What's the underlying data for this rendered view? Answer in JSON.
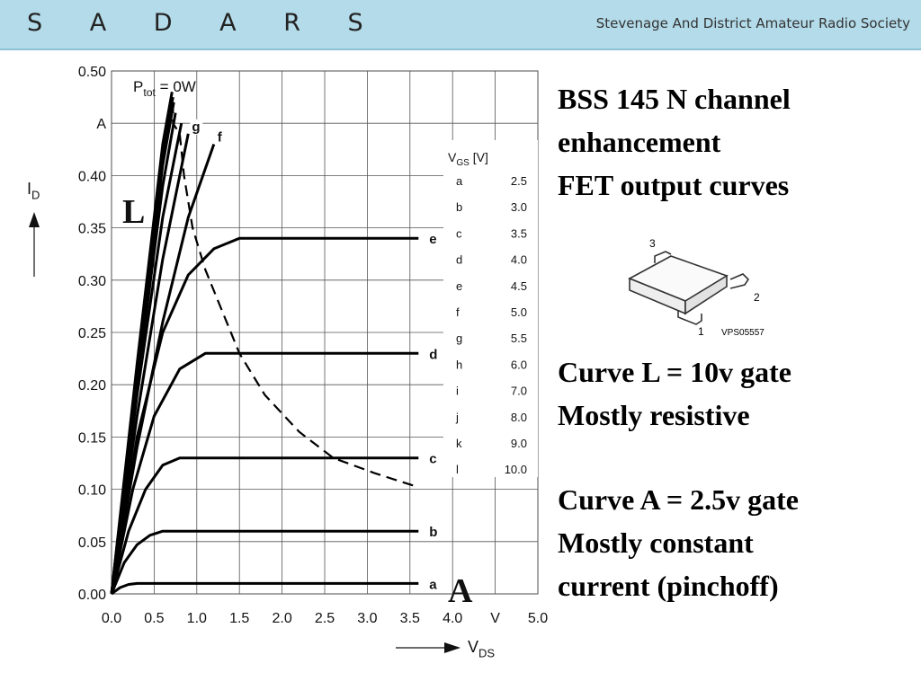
{
  "header": {
    "logo": "S A D A R S",
    "society": "Stevenage And District Amateur Radio Society",
    "bg_color": "#b3dbe9"
  },
  "description": {
    "title_lines": [
      "BSS 145 N channel",
      "enhancement",
      "FET output curves"
    ],
    "curve_l_lines": [
      "Curve L = 10v gate",
      "Mostly resistive"
    ],
    "curve_a_lines": [
      "Curve A = 2.5v gate",
      "Mostly constant",
      "current (pinchoff)"
    ]
  },
  "package": {
    "pins": [
      "1",
      "2",
      "3"
    ],
    "code": "VPS05557"
  },
  "chart_data": {
    "type": "line",
    "xlabel": "V",
    "xlabel_sub": "DS",
    "ylabel": "I",
    "ylabel_sub": "D",
    "x_unit": "V",
    "y_unit": "A",
    "xlim": [
      0,
      5.0
    ],
    "ylim": [
      0,
      0.5
    ],
    "x_ticks": [
      "0.0",
      "0.5",
      "1.0",
      "1.5",
      "2.0",
      "2.5",
      "3.0",
      "3.5",
      "4.0",
      "V",
      "5.0"
    ],
    "y_ticks": [
      "0.00",
      "0.05",
      "0.10",
      "0.15",
      "0.20",
      "0.25",
      "0.30",
      "0.35",
      "0.40",
      "A",
      "0.50"
    ],
    "grid": true,
    "ptot_label": "P",
    "ptot_sub": "tot",
    "ptot_value": "= 0W",
    "overlay_labels": {
      "L": "L",
      "A": "A"
    },
    "vgs_table": {
      "header": "V",
      "header_sub": "GS",
      "header_unit": "[V]",
      "rows": [
        [
          "a",
          "2.5"
        ],
        [
          "b",
          "3.0"
        ],
        [
          "c",
          "3.5"
        ],
        [
          "d",
          "4.0"
        ],
        [
          "e",
          "4.5"
        ],
        [
          "f",
          "5.0"
        ],
        [
          "g",
          "5.5"
        ],
        [
          "h",
          "6.0"
        ],
        [
          "i",
          "7.0"
        ],
        [
          "j",
          "8.0"
        ],
        [
          "k",
          "9.0"
        ],
        [
          "l",
          "10.0"
        ]
      ]
    },
    "series": [
      {
        "name": "a",
        "points": [
          [
            0,
            0
          ],
          [
            0.1,
            0.006
          ],
          [
            0.2,
            0.009
          ],
          [
            0.3,
            0.01
          ],
          [
            3.6,
            0.01
          ]
        ]
      },
      {
        "name": "b",
        "points": [
          [
            0,
            0
          ],
          [
            0.15,
            0.03
          ],
          [
            0.3,
            0.047
          ],
          [
            0.45,
            0.056
          ],
          [
            0.6,
            0.06
          ],
          [
            3.6,
            0.06
          ]
        ]
      },
      {
        "name": "c",
        "points": [
          [
            0,
            0
          ],
          [
            0.2,
            0.06
          ],
          [
            0.4,
            0.1
          ],
          [
            0.6,
            0.123
          ],
          [
            0.8,
            0.13
          ],
          [
            3.6,
            0.13
          ]
        ]
      },
      {
        "name": "d",
        "points": [
          [
            0,
            0
          ],
          [
            0.25,
            0.1
          ],
          [
            0.5,
            0.17
          ],
          [
            0.8,
            0.215
          ],
          [
            1.1,
            0.23
          ],
          [
            3.6,
            0.23
          ]
        ]
      },
      {
        "name": "e",
        "points": [
          [
            0,
            0
          ],
          [
            0.3,
            0.15
          ],
          [
            0.6,
            0.25
          ],
          [
            0.9,
            0.305
          ],
          [
            1.2,
            0.33
          ],
          [
            1.5,
            0.34
          ],
          [
            3.6,
            0.34
          ]
        ]
      },
      {
        "name": "f",
        "points": [
          [
            0,
            0
          ],
          [
            0.3,
            0.14
          ],
          [
            0.6,
            0.26
          ],
          [
            0.9,
            0.36
          ],
          [
            1.2,
            0.43
          ]
        ]
      },
      {
        "name": "g",
        "points": [
          [
            0,
            0
          ],
          [
            0.3,
            0.17
          ],
          [
            0.6,
            0.32
          ],
          [
            0.9,
            0.44
          ]
        ]
      },
      {
        "name": "h",
        "points": [
          [
            0,
            0
          ],
          [
            0.3,
            0.19
          ],
          [
            0.6,
            0.36
          ],
          [
            0.82,
            0.45
          ]
        ]
      },
      {
        "name": "i",
        "points": [
          [
            0,
            0
          ],
          [
            0.3,
            0.2
          ],
          [
            0.6,
            0.39
          ],
          [
            0.75,
            0.46
          ]
        ]
      },
      {
        "name": "j",
        "points": [
          [
            0,
            0
          ],
          [
            0.3,
            0.21
          ],
          [
            0.6,
            0.41
          ],
          [
            0.73,
            0.47
          ]
        ]
      },
      {
        "name": "k",
        "points": [
          [
            0,
            0
          ],
          [
            0.3,
            0.215
          ],
          [
            0.6,
            0.42
          ],
          [
            0.72,
            0.475
          ]
        ]
      },
      {
        "name": "l",
        "points": [
          [
            0,
            0
          ],
          [
            0.3,
            0.22
          ],
          [
            0.6,
            0.43
          ],
          [
            0.71,
            0.48
          ]
        ]
      }
    ],
    "curve_labels": [
      {
        "series": "a",
        "x": 3.6,
        "y": 0.01
      },
      {
        "series": "b",
        "x": 3.6,
        "y": 0.06
      },
      {
        "series": "c",
        "x": 3.6,
        "y": 0.13
      },
      {
        "series": "d",
        "x": 3.6,
        "y": 0.23
      },
      {
        "series": "e",
        "x": 3.6,
        "y": 0.34
      },
      {
        "series": "f",
        "x": 1.2,
        "y": 0.43
      },
      {
        "series": "g",
        "x": 0.9,
        "y": 0.44
      }
    ],
    "dashed_series": {
      "name": "P",
      "points": [
        [
          0.72,
          0.47
        ],
        [
          0.72,
          0.45
        ],
        [
          0.8,
          0.44
        ],
        [
          0.85,
          0.4
        ],
        [
          0.95,
          0.35
        ],
        [
          1.1,
          0.31
        ],
        [
          1.3,
          0.27
        ],
        [
          1.5,
          0.23
        ],
        [
          1.8,
          0.19
        ],
        [
          2.2,
          0.155
        ],
        [
          2.6,
          0.13
        ],
        [
          3.1,
          0.115
        ],
        [
          3.6,
          0.102
        ]
      ]
    }
  }
}
